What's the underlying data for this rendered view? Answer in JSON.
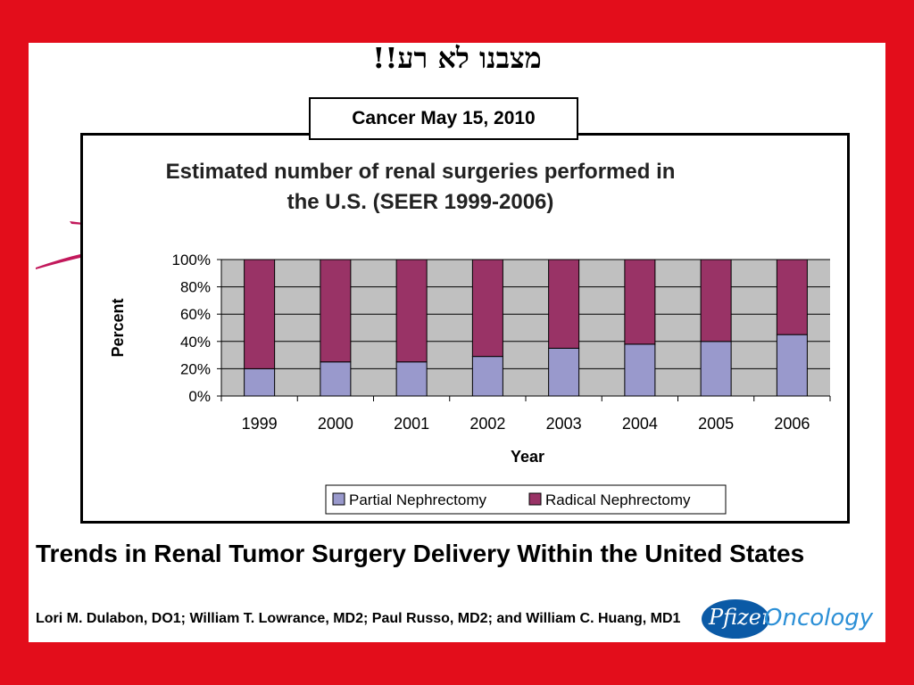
{
  "slide": {
    "hebrew_title": "מצבנו לא רע!!",
    "source": "Cancer May 15, 2010",
    "article_title": "Trends in Renal Tumor Surgery Delivery Within the United States",
    "authors": "Lori M. Dulabon, DO1; William T. Lowrance, MD2; Paul Russo, MD2; and William C. Huang, MD1",
    "logo_part1": "Pfizer",
    "logo_part2": "Oncology"
  },
  "colors": {
    "background": "#e30d1b",
    "partial": "#9999cc",
    "radical": "#993366",
    "plot_bg": "#c0c0c0",
    "logo_blue": "#0b5aa6"
  },
  "chart_data": {
    "type": "bar",
    "stacked": true,
    "percent_stacked": true,
    "title": "Estimated number of renal surgeries performed in the U.S. (SEER 1999-2006)",
    "title_lines": [
      "Estimated number of renal surgeries performed in",
      "the U.S. (SEER 1999-2006)"
    ],
    "xlabel": "Year",
    "ylabel": "Percent",
    "categories": [
      "1999",
      "2000",
      "2001",
      "2002",
      "2003",
      "2004",
      "2005",
      "2006"
    ],
    "ylim": [
      0,
      100
    ],
    "yticks": [
      "0%",
      "20%",
      "40%",
      "60%",
      "80%",
      "100%"
    ],
    "grid": true,
    "legend_position": "bottom",
    "series": [
      {
        "name": "Partial Nephrectomy",
        "values": [
          20,
          25,
          25,
          29,
          35,
          38,
          40,
          45
        ]
      },
      {
        "name": "Radical Nephrectomy",
        "values": [
          80,
          75,
          75,
          71,
          65,
          62,
          60,
          55
        ]
      }
    ]
  }
}
